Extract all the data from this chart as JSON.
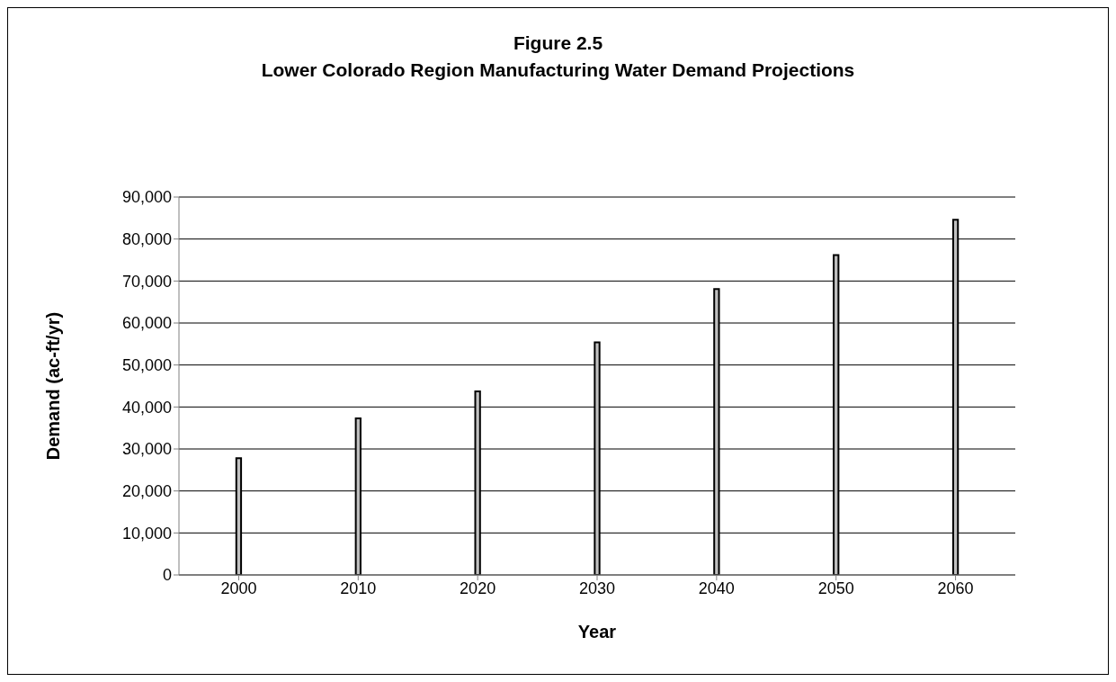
{
  "chart_data": {
    "type": "bar",
    "title": "Figure 2.5",
    "subtitle": "Lower Colorado Region Manufacturing Water Demand Projections",
    "xlabel": "Year",
    "ylabel": "Demand (ac-ft/yr)",
    "categories": [
      "2000",
      "2010",
      "2020",
      "2030",
      "2040",
      "2050",
      "2060"
    ],
    "values": [
      27800,
      37300,
      43700,
      55400,
      68100,
      76200,
      84600
    ],
    "color": "#c0c0c0",
    "ylim": [
      0,
      90000
    ],
    "yticks": [
      {
        "value": 0,
        "label": "0"
      },
      {
        "value": 10000,
        "label": "10,000"
      },
      {
        "value": 20000,
        "label": "20,000"
      },
      {
        "value": 30000,
        "label": "30,000"
      },
      {
        "value": 40000,
        "label": "40,000"
      },
      {
        "value": 50000,
        "label": "50,000"
      },
      {
        "value": 60000,
        "label": "60,000"
      },
      {
        "value": 70000,
        "label": "70,000"
      },
      {
        "value": 80000,
        "label": "80,000"
      },
      {
        "value": 90000,
        "label": "90,000"
      }
    ],
    "grid": "y",
    "legend": false
  }
}
